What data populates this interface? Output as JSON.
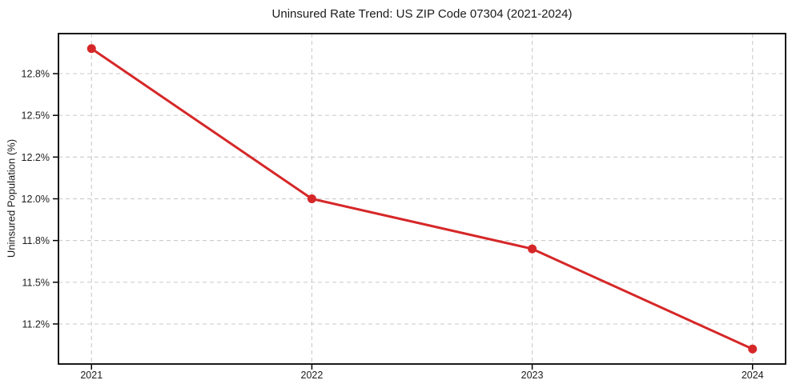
{
  "figure": {
    "title": "Uninsured Rate Trend: US ZIP Code 07304 (2021-2024)",
    "ylabel": "Uninsured Population (%)"
  },
  "chart_data": {
    "type": "line",
    "title": "Uninsured Rate Trend: US ZIP Code 07304 (2021-2024)",
    "xlabel": "",
    "ylabel": "Uninsured Population (%)",
    "x": [
      2021,
      2022,
      2023,
      2024
    ],
    "values": [
      12.9,
      12.0,
      11.7,
      11.1
    ],
    "series_name": "Uninsured rate",
    "xlim": [
      2020.85,
      2024.15
    ],
    "ylim": [
      11.01,
      12.99
    ],
    "xticks": [
      {
        "value": 2021,
        "label": "2021"
      },
      {
        "value": 2022,
        "label": "2022"
      },
      {
        "value": 2023,
        "label": "2023"
      },
      {
        "value": 2024,
        "label": "2024"
      }
    ],
    "yticks": [
      {
        "value": 11.25,
        "label": "11.2%"
      },
      {
        "value": 11.5,
        "label": "11.5%"
      },
      {
        "value": 11.75,
        "label": "11.8%"
      },
      {
        "value": 12.0,
        "label": "12.0%"
      },
      {
        "value": 12.25,
        "label": "12.2%"
      },
      {
        "value": 12.5,
        "label": "12.5%"
      },
      {
        "value": 12.75,
        "label": "12.8%"
      }
    ],
    "grid": true,
    "grid_style": "dashed",
    "legend": "none",
    "colors": {
      "line": "#d62728",
      "marker": "#d62728",
      "grid": "#cfcfcf",
      "spine": "#000000",
      "tick": "#000000",
      "text": "#1c1c1c",
      "background": "#ffffff"
    }
  }
}
